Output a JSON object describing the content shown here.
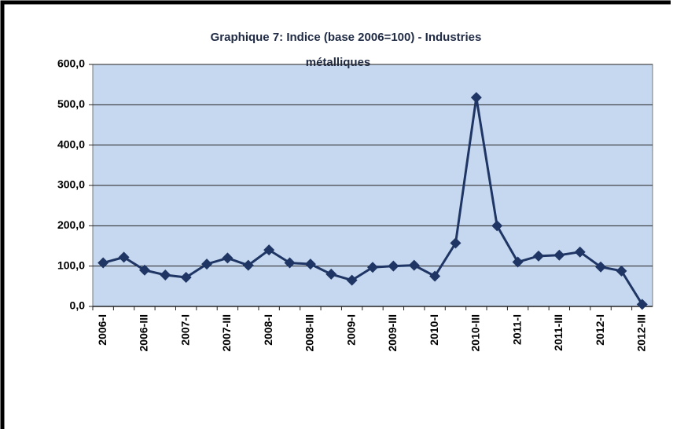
{
  "chart_data": {
    "type": "line",
    "title": [
      "Graphique 7: Indice (base 2006=100) - Industries",
      "métalliques"
    ],
    "categories": [
      "2006-I",
      null,
      "2006-III",
      null,
      "2007-I",
      null,
      "2007-III",
      null,
      "2008-I",
      null,
      "2008-III",
      null,
      "2009-I",
      null,
      "2009-III",
      null,
      "2010-I",
      null,
      "2010-III",
      null,
      "2011-I",
      null,
      "2011-III",
      null,
      "2012-I",
      null,
      "2012-III"
    ],
    "series": [
      {
        "color": "#1f3564",
        "values": [
          108,
          122,
          90,
          78,
          72,
          105,
          120,
          102,
          140,
          108,
          105,
          80,
          65,
          97,
          100,
          102,
          75,
          157,
          518,
          200,
          110,
          125,
          127,
          135,
          98,
          88,
          5
        ]
      }
    ],
    "ylim": [
      0,
      600
    ],
    "yticks": [
      {
        "value": 0,
        "label": "0,0"
      },
      {
        "value": 100,
        "label": "100,0"
      },
      {
        "value": 200,
        "label": "200,0"
      },
      {
        "value": 300,
        "label": "300,0"
      },
      {
        "value": 400,
        "label": "400,0"
      },
      {
        "value": 500,
        "label": "500,0"
      },
      {
        "value": 600,
        "label": "600,0"
      }
    ],
    "grid": true,
    "plot_background": "#c5d8ef"
  }
}
